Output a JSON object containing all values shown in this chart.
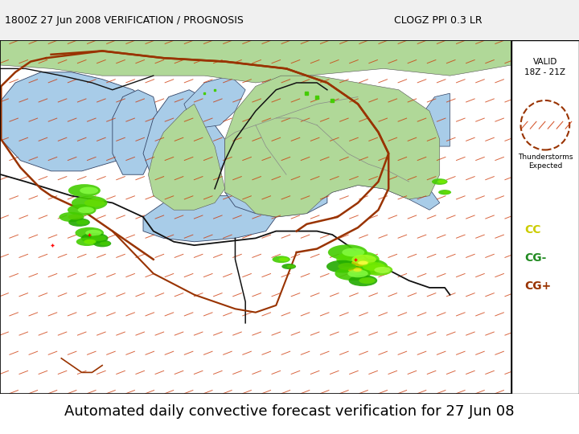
{
  "title_left": "1800Z 27 Jun 2008 VERIFICATION / PROGNOSIS",
  "title_right": "CLOGZ PPI 0.3 LR",
  "caption": "Automated daily convective forecast verification for 27 Jun 08",
  "valid_text": "VALID\n18Z - 21Z",
  "legend_label": "Thunderstorms\nExpected",
  "legend_cc": "CC",
  "legend_cgm": "CG-",
  "legend_cgp": "CG+",
  "map_light_green": "#c8e8b0",
  "map_dark_green": "#b0d898",
  "water_color": "#a8cce8",
  "sidebar_color": "#ffffff",
  "caption_bg": "#ffffff",
  "red_color": "#993300",
  "dark_line_color": "#111111",
  "gray_line_color": "#888888",
  "hatch_color": "#cc3300",
  "green_echo1": "#44cc00",
  "green_echo2": "#88ee44",
  "yellow_echo": "#cccc00",
  "red_echo": "#cc0000"
}
